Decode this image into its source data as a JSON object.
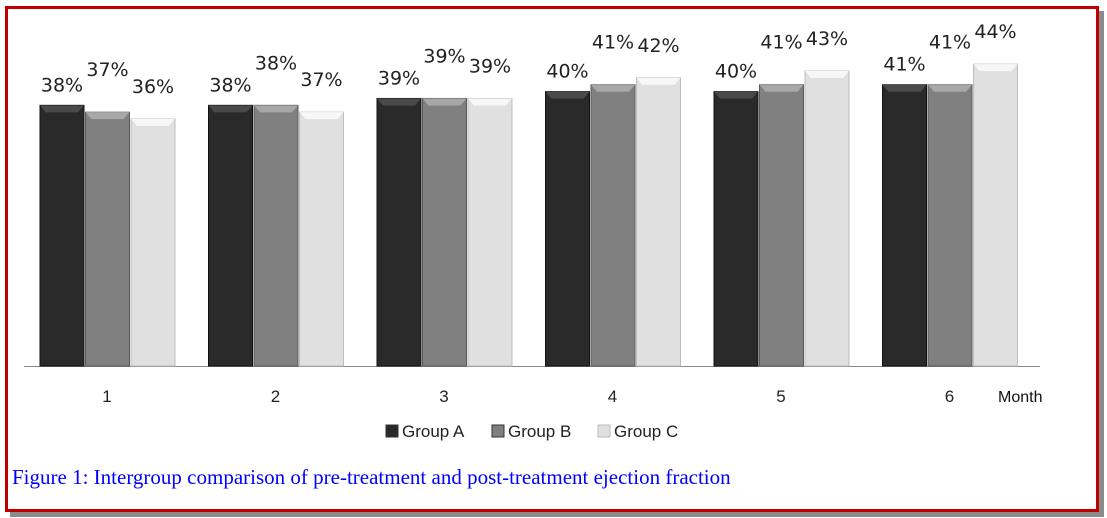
{
  "chart_data": {
    "type": "bar",
    "categories": [
      "1",
      "2",
      "3",
      "4",
      "5",
      "6"
    ],
    "xlabel": "Month",
    "ylabel": "",
    "ylim": [
      0,
      53
    ],
    "grid": false,
    "legend_position": "bottom",
    "series": [
      {
        "name": "Group A",
        "color": "#2a2a2a",
        "values": [
          38,
          38,
          39,
          40,
          40,
          41
        ],
        "labels": [
          "38%",
          "38%",
          "39%",
          "40%",
          "40%",
          "41%"
        ]
      },
      {
        "name": "Group B",
        "color": "#808080",
        "values": [
          37,
          38,
          39,
          41,
          41,
          41
        ],
        "labels": [
          "37%",
          "38%",
          "39%",
          "41%",
          "41%",
          "41%"
        ]
      },
      {
        "name": "Group C",
        "color": "#e0e0e0",
        "values": [
          36,
          37,
          39,
          42,
          43,
          44
        ],
        "labels": [
          "36%",
          "37%",
          "39%",
          "42%",
          "43%",
          "44%"
        ]
      }
    ]
  },
  "caption": {
    "prefix": "Figure 1:",
    "text": " Intergroup comparison of pre-treatment and post-treatment ejection fraction"
  },
  "colors": {
    "border": "#c00000",
    "caption": "#0000ff"
  }
}
